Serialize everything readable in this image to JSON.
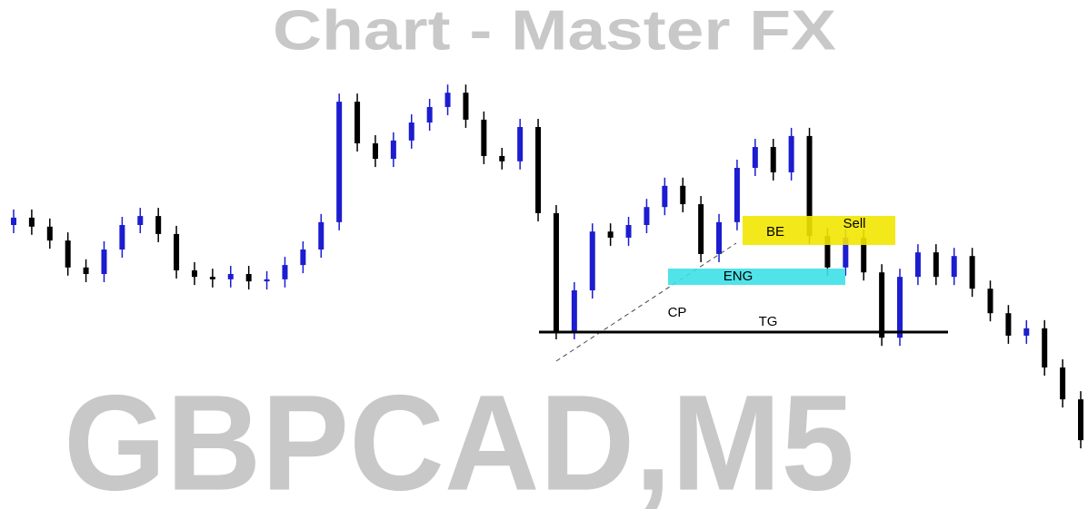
{
  "chart_data": {
    "type": "candlestick",
    "title": "Chart - Master FX",
    "symbol": "GBPCAD,M5",
    "annotations": {
      "be": "BE",
      "sell": "Sell",
      "eng": "ENG",
      "cp": "CP",
      "tg": "TG"
    },
    "ylim": [
      0,
      100
    ],
    "up_color": "#1c1cd0",
    "down_color": "#000000",
    "open": [
      56,
      57.8,
      55.6,
      52.2,
      45.6,
      44,
      50,
      56,
      58.2,
      53.8,
      44.9,
      43.3,
      42.7,
      44,
      42.2,
      42.7,
      46.2,
      50,
      56.7,
      86.2,
      76,
      72.2,
      76.7,
      81.1,
      84.9,
      88.4,
      81.8,
      72.9,
      71.6,
      80,
      58.9,
      30,
      40,
      54.4,
      52.9,
      56,
      60.4,
      65.6,
      61.1,
      48.9,
      56.7,
      70,
      75.1,
      68.9,
      77.8,
      53.3,
      45.6,
      52.9,
      44.4,
      28.4,
      43.3,
      49.3,
      43.3,
      48.4,
      40.4,
      34.4,
      28.9,
      30.7,
      21.1,
      13.3
    ],
    "high": [
      59.8,
      59.8,
      57.6,
      54.2,
      47.6,
      52,
      58,
      60.2,
      60.2,
      55.8,
      46.9,
      45.3,
      46,
      46,
      44.7,
      48.2,
      52,
      58.7,
      88.2,
      88.2,
      78,
      78.7,
      83.1,
      86.9,
      90.4,
      90.4,
      83.8,
      74.9,
      82,
      82,
      60.9,
      42,
      56.4,
      56.4,
      58,
      62.4,
      67.6,
      67.6,
      63.1,
      58.7,
      72,
      77.1,
      77.1,
      79.8,
      79.8,
      55.3,
      54.9,
      54.9,
      46.4,
      45.3,
      51.3,
      51.3,
      50.4,
      50.4,
      42.4,
      36.4,
      32.7,
      32.7,
      23.1,
      15.3
    ],
    "low": [
      54,
      53.6,
      50.2,
      43.6,
      42,
      42,
      48,
      54,
      51.8,
      42.9,
      41.3,
      40.7,
      40.7,
      40.2,
      40.2,
      40.7,
      44.2,
      48,
      54.7,
      74,
      70.2,
      70.2,
      74.7,
      79.1,
      82.9,
      79.8,
      70.9,
      69.6,
      69.6,
      56.9,
      28,
      28,
      38,
      50.9,
      50.9,
      54,
      58.4,
      59.1,
      46.9,
      46.9,
      54.7,
      68,
      66.9,
      66.9,
      51.3,
      43.6,
      43.6,
      42.4,
      26.4,
      26.4,
      41.3,
      41.3,
      41.3,
      38.4,
      32.4,
      26.9,
      26.9,
      19.1,
      11.3,
      1.3
    ],
    "close": [
      57.8,
      55.6,
      52.2,
      45.6,
      44,
      50,
      56,
      58.2,
      53.8,
      44.9,
      43.3,
      42.7,
      44,
      42.2,
      42.7,
      46.2,
      50,
      56.7,
      86.2,
      76,
      72.2,
      76.7,
      81.1,
      84.9,
      88.4,
      81.8,
      72.9,
      71.6,
      80,
      58.9,
      30,
      40,
      54.4,
      52.9,
      56,
      60.4,
      65.6,
      61.1,
      48.9,
      56.7,
      70,
      75.1,
      68.9,
      77.8,
      53.3,
      45.6,
      52.9,
      44.4,
      28.4,
      43.3,
      49.3,
      43.3,
      48.4,
      40.4,
      34.4,
      28.9,
      30.7,
      21.1,
      13.3,
      3.3
    ]
  }
}
